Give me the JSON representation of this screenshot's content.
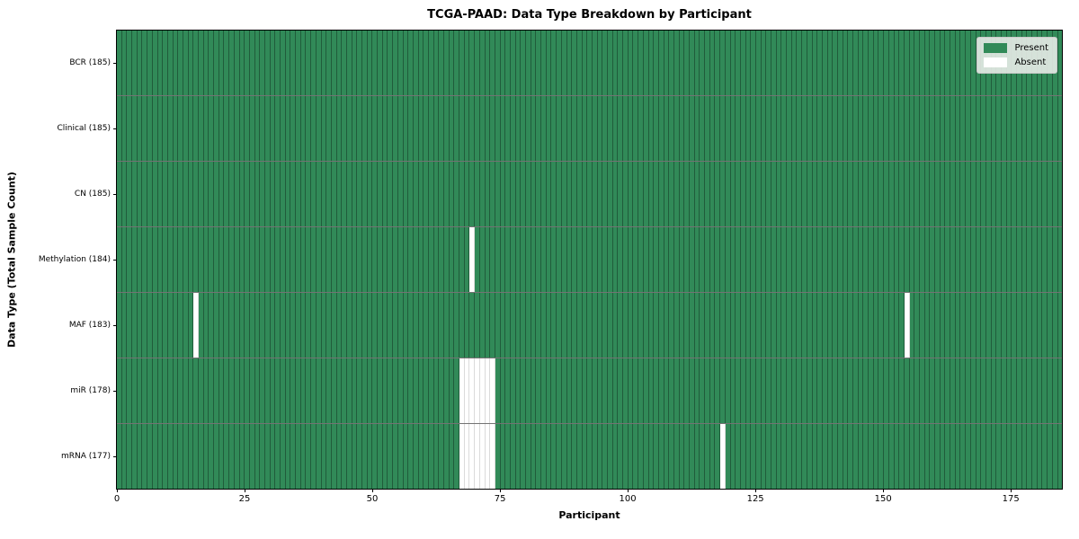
{
  "title": "TCGA-PAAD: Data Type Breakdown by Participant",
  "colors": {
    "present": "#318a58",
    "absent": "#ffffff",
    "frame": "#000000",
    "legend_bg": "#e8ebe8"
  },
  "legend": {
    "present": "Present",
    "absent": "Absent"
  },
  "chart_data": {
    "type": "heatmap",
    "title": "TCGA-PAAD: Data Type Breakdown by Participant",
    "xlabel": "Participant",
    "ylabel": "Data Type (Total Sample Count)",
    "x_range": [
      0,
      185
    ],
    "n_participants": 185,
    "x_ticks": [
      0,
      25,
      50,
      75,
      100,
      125,
      150,
      175
    ],
    "legend_entries": [
      {
        "label": "Present",
        "color": "#318a58"
      },
      {
        "label": "Absent",
        "color": "#ffffff"
      }
    ],
    "legend_position": "upper right",
    "grid": false,
    "rows": [
      {
        "label": "BCR (185)",
        "data_type": "BCR",
        "present_count": 185,
        "absent_participants": []
      },
      {
        "label": "Clinical (185)",
        "data_type": "Clinical",
        "present_count": 185,
        "absent_participants": []
      },
      {
        "label": "CN (185)",
        "data_type": "CN",
        "present_count": 185,
        "absent_participants": []
      },
      {
        "label": "Methylation (184)",
        "data_type": "Methylation",
        "present_count": 184,
        "absent_participants": [
          69
        ]
      },
      {
        "label": "MAF (183)",
        "data_type": "MAF",
        "present_count": 183,
        "absent_participants": [
          15,
          154
        ]
      },
      {
        "label": "miR (178)",
        "data_type": "miR",
        "present_count": 178,
        "absent_participants": [
          67,
          68,
          69,
          70,
          71,
          72,
          73
        ]
      },
      {
        "label": "mRNA (177)",
        "data_type": "mRNA",
        "present_count": 177,
        "absent_participants": [
          67,
          68,
          69,
          70,
          71,
          72,
          73,
          118
        ]
      }
    ]
  }
}
